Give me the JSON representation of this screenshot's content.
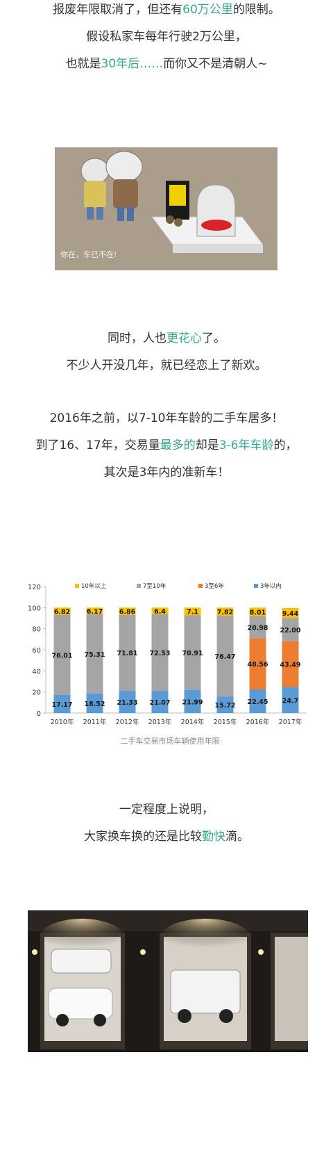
{
  "section1": {
    "line1": {
      "a": "报废年限取消了，但还有",
      "b": "60万公里",
      "c": "的限制。"
    },
    "line2": "假设私家车每年行驶2万公里，",
    "line3": {
      "a": "也就是",
      "b": "30年后……",
      "c": "而你又不是清朝人~"
    }
  },
  "cartoon": {
    "caption": "你在，车已不在!"
  },
  "section2": {
    "line1": {
      "a": "同时，人也",
      "b": "更花心",
      "c": "了。"
    },
    "line2": "不少人开没几年，就已经恋上了新欢。"
  },
  "section3": {
    "line1": "2016年之前，以7-10年车龄的二手车居多！",
    "line2": {
      "a": "到了16、17年，交易量",
      "b": "最多的",
      "c": "却是",
      "d": "3-6年车龄",
      "e": "的，"
    },
    "line3": "其次是3年内的准新车！"
  },
  "chart_caption": "二手车交易市场车辆使用年限",
  "chart_data": {
    "type": "bar",
    "stacked": true,
    "title": "",
    "xlabel": "",
    "ylabel": "",
    "ylim": [
      0,
      120
    ],
    "yticks": [
      "0",
      "20",
      "40",
      "60",
      "80",
      "100",
      "120"
    ],
    "categories": [
      "2010年",
      "2011年",
      "2012年",
      "2013年",
      "2014年",
      "2015年",
      "2016年",
      "2017年"
    ],
    "legend_position": "top",
    "series": [
      {
        "name": "3年以内",
        "color": "#5b9bd5",
        "values": [
          17.17,
          18.52,
          21.33,
          21.07,
          21.99,
          15.72,
          22.45,
          24.7
        ],
        "labels": [
          "17.17",
          "18.52",
          "21.33",
          "21.07",
          "21.99",
          "15.72",
          "22.45",
          "24.7"
        ]
      },
      {
        "name": "3至6年",
        "color": "#ed7d31",
        "values": [
          0,
          0,
          0,
          0,
          0,
          0,
          48.56,
          43.49
        ],
        "labels": [
          "",
          "",
          "",
          "",
          "",
          "",
          "48.56",
          "43.49"
        ]
      },
      {
        "name": "7至10年",
        "color": "#a5a5a5",
        "values": [
          76.01,
          75.31,
          71.81,
          72.53,
          70.91,
          76.47,
          20.98,
          22.0
        ],
        "labels": [
          "76.01",
          "75.31",
          "71.81",
          "72.53",
          "70.91",
          "76.47",
          "20.98",
          "22.00"
        ]
      },
      {
        "name": "10年以上",
        "color": "#ffc000",
        "values": [
          6.82,
          6.17,
          6.86,
          6.4,
          7.1,
          7.82,
          8.01,
          9.44
        ],
        "labels": [
          "6.82",
          "6.17",
          "6.86",
          "6.4",
          "7.1",
          "7.82",
          "8.01",
          "9.44"
        ]
      }
    ],
    "legend_order": [
      "10年以上",
      "7至10年",
      "3至6年",
      "3年以内"
    ]
  },
  "section4": {
    "line1": "一定程度上说明，",
    "line2": {
      "a": "大家换车换的还是比较",
      "b": "勤快",
      "c": "滴。"
    }
  }
}
